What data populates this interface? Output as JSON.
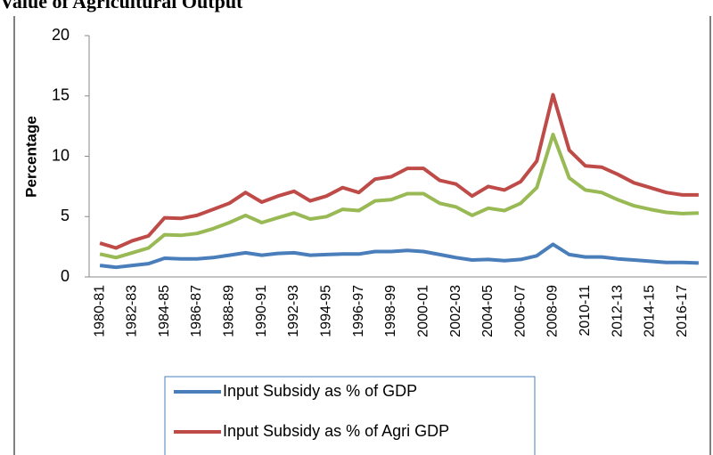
{
  "chart_data": {
    "type": "line",
    "title": "Value of Agricultural Output",
    "ylabel": "Percentage",
    "categories": [
      "1980-81",
      null,
      "1982-83",
      null,
      "1984-85",
      null,
      "1986-87",
      null,
      "1988-89",
      null,
      "1990-91",
      null,
      "1992-93",
      null,
      "1994-95",
      null,
      "1996-97",
      null,
      "1998-99",
      null,
      "2000-01",
      null,
      "2002-03",
      null,
      "2004-05",
      null,
      "2006-07",
      null,
      "2008-09",
      null,
      "2010-11",
      null,
      "2012-13",
      null,
      "2014-15",
      null,
      "2016-17",
      null
    ],
    "series": [
      {
        "name": "Input Subsidy as % of GDP",
        "color": "#4a7ebb",
        "values": [
          0.95,
          0.8,
          0.95,
          1.1,
          1.55,
          1.5,
          1.5,
          1.6,
          1.8,
          2.0,
          1.8,
          1.95,
          2.0,
          1.8,
          1.85,
          1.9,
          1.9,
          2.1,
          2.1,
          2.2,
          2.1,
          1.85,
          1.6,
          1.4,
          1.45,
          1.35,
          1.45,
          1.75,
          2.7,
          1.85,
          1.65,
          1.65,
          1.5,
          1.4,
          1.3,
          1.2,
          1.2,
          1.15
        ]
      },
      {
        "name": "Input Subsidy as % of Agri GDP",
        "color": "#be4b48",
        "values": [
          2.8,
          2.4,
          3.0,
          3.4,
          4.9,
          4.85,
          5.1,
          5.6,
          6.1,
          7.0,
          6.2,
          6.7,
          7.1,
          6.3,
          6.7,
          7.4,
          7.0,
          8.1,
          8.3,
          9.0,
          9.0,
          8.0,
          7.7,
          6.7,
          7.5,
          7.2,
          7.9,
          9.6,
          15.1,
          10.5,
          9.2,
          9.1,
          8.5,
          7.8,
          7.4,
          7.0,
          6.8,
          6.8
        ]
      },
      {
        "color": "#98b954",
        "values": [
          1.9,
          1.6,
          2.0,
          2.4,
          3.5,
          3.45,
          3.6,
          4.0,
          4.5,
          5.1,
          4.5,
          4.9,
          5.3,
          4.8,
          5.0,
          5.6,
          5.5,
          6.3,
          6.4,
          6.9,
          6.9,
          6.1,
          5.8,
          5.1,
          5.7,
          5.5,
          6.1,
          7.4,
          11.8,
          8.2,
          7.2,
          7.0,
          6.4,
          5.9,
          5.6,
          5.35,
          5.25,
          5.3
        ]
      }
    ],
    "ylim": [
      0,
      20
    ],
    "yticks": [
      0,
      5,
      10,
      15,
      20
    ]
  }
}
